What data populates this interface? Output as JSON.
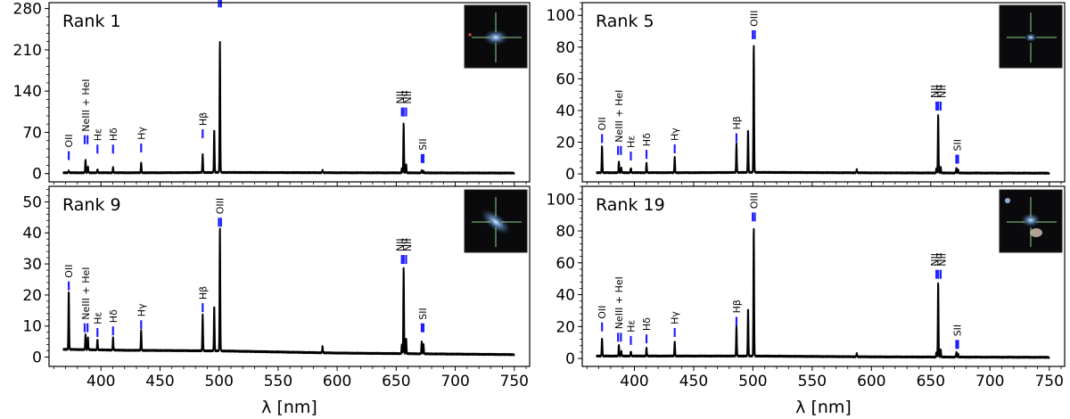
{
  "colors": {
    "spectrum": "#000000",
    "marker": "#1f1fff",
    "thumbnail_bg": "#0a0a0c",
    "thumbnail_cross": "#8fd18a"
  },
  "chart_data": [
    {
      "type": "line",
      "title": "Rank 1",
      "xlabel": "λ [nm]",
      "ylabel": "",
      "xlim": [
        356,
        763
      ],
      "ylim": [
        -14,
        290
      ],
      "xticks": [
        400,
        450,
        500,
        550,
        600,
        650,
        700,
        750
      ],
      "yticks": [
        0,
        70,
        140,
        210,
        280
      ],
      "continuum": [
        [
          370,
          1.5
        ],
        [
          450,
          1.5
        ],
        [
          500,
          2
        ],
        [
          600,
          1.5
        ],
        [
          750,
          1
        ]
      ],
      "emission_peaks": [
        {
          "line": "OII",
          "wavelength": 372.7,
          "value": 3
        },
        {
          "line": "NeIII",
          "wavelength": 386.9,
          "value": 22
        },
        {
          "line": "HeI",
          "wavelength": 388.9,
          "value": 10
        },
        {
          "line": "Hε",
          "wavelength": 397.0,
          "value": 6
        },
        {
          "line": "Hδ",
          "wavelength": 410.2,
          "value": 9
        },
        {
          "line": "Hγ",
          "wavelength": 434.0,
          "value": 17
        },
        {
          "line": "Hβ",
          "wavelength": 486.1,
          "value": 30
        },
        {
          "line": "OIII",
          "wavelength": 495.9,
          "value": 73
        },
        {
          "line": "OIII",
          "wavelength": 500.7,
          "value": 225
        },
        {
          "line": "HeI",
          "wavelength": 587.6,
          "value": 4
        },
        {
          "line": "NII",
          "wavelength": 654.8,
          "value": 8
        },
        {
          "line": "Hα",
          "wavelength": 656.3,
          "value": 85
        },
        {
          "line": "NII",
          "wavelength": 658.4,
          "value": 15
        },
        {
          "line": "SII",
          "wavelength": 671.6,
          "value": 4
        },
        {
          "line": "SII",
          "wavelength": 673.1,
          "value": 3
        }
      ],
      "line_markers": [
        {
          "label": "OII",
          "x": 372.7,
          "marker_y": 23,
          "ticks": [
            372.7
          ]
        },
        {
          "label": "NeIII + HeI",
          "x": 387,
          "marker_y": 50,
          "ticks": [
            386.2,
            388.6
          ]
        },
        {
          "label": "Hε",
          "x": 397.0,
          "marker_y": 34,
          "ticks": [
            397.0
          ]
        },
        {
          "label": "Hδ",
          "x": 410.2,
          "marker_y": 34,
          "ticks": [
            410.2
          ]
        },
        {
          "label": "Hγ",
          "x": 434.0,
          "marker_y": 36,
          "ticks": [
            434.0
          ]
        },
        {
          "label": "Hβ",
          "x": 486.1,
          "marker_y": 60,
          "ticks": [
            486.1
          ]
        },
        {
          "label": "OIII",
          "x": 500.7,
          "marker_y": 282,
          "ticks": [
            499.8,
            501.6
          ]
        },
        {
          "label": "NII",
          "x": 653.2,
          "marker_y": 97,
          "ticks": [
            654.8
          ]
        },
        {
          "label": "Hα",
          "x": 656.3,
          "marker_y": 97,
          "ticks": [
            656.3
          ]
        },
        {
          "label": "NII",
          "x": 659.6,
          "marker_y": 97,
          "ticks": [
            658.4
          ]
        },
        {
          "label": "SII",
          "x": 672.4,
          "marker_y": 18,
          "ticks": [
            671.6,
            673.1
          ]
        }
      ]
    },
    {
      "type": "line",
      "title": "Rank 5",
      "xlabel": "λ [nm]",
      "ylabel": "",
      "xlim": [
        356,
        763
      ],
      "ylim": [
        -5,
        108
      ],
      "xticks": [
        400,
        450,
        500,
        550,
        600,
        650,
        700,
        750
      ],
      "yticks": [
        0,
        20,
        40,
        60,
        80,
        100
      ],
      "continuum": [
        [
          370,
          0.8
        ],
        [
          450,
          0.8
        ],
        [
          500,
          1
        ],
        [
          600,
          0.7
        ],
        [
          750,
          0.5
        ]
      ],
      "emission_peaks": [
        {
          "line": "OII",
          "wavelength": 372.7,
          "value": 17
        },
        {
          "line": "NeIII",
          "wavelength": 386.9,
          "value": 7
        },
        {
          "line": "HeI",
          "wavelength": 388.9,
          "value": 3
        },
        {
          "line": "Hε",
          "wavelength": 397.0,
          "value": 3
        },
        {
          "line": "Hδ",
          "wavelength": 410.2,
          "value": 6
        },
        {
          "line": "Hγ",
          "wavelength": 434.0,
          "value": 10
        },
        {
          "line": "Hβ",
          "wavelength": 486.1,
          "value": 18
        },
        {
          "line": "OIII",
          "wavelength": 495.9,
          "value": 27
        },
        {
          "line": "OIII",
          "wavelength": 500.7,
          "value": 81
        },
        {
          "line": "HeI",
          "wavelength": 587.6,
          "value": 2
        },
        {
          "line": "NII",
          "wavelength": 654.8,
          "value": 3
        },
        {
          "line": "Hα",
          "wavelength": 656.3,
          "value": 37
        },
        {
          "line": "NII",
          "wavelength": 658.4,
          "value": 4
        },
        {
          "line": "SII",
          "wavelength": 671.6,
          "value": 3
        },
        {
          "line": "SII",
          "wavelength": 673.1,
          "value": 2
        }
      ],
      "line_markers": [
        {
          "label": "OII",
          "x": 372.7,
          "marker_y": 19.5,
          "ticks": [
            372.7
          ]
        },
        {
          "label": "NeIII + HeI",
          "x": 387,
          "marker_y": 12,
          "ticks": [
            386.2,
            388.6
          ]
        },
        {
          "label": "Hε",
          "x": 397.0,
          "marker_y": 8.5,
          "ticks": [
            397.0
          ]
        },
        {
          "label": "Hδ",
          "x": 410.2,
          "marker_y": 9.5,
          "ticks": [
            410.2
          ]
        },
        {
          "label": "Hγ",
          "x": 434.0,
          "marker_y": 13,
          "ticks": [
            434.0
          ]
        },
        {
          "label": "Hβ",
          "x": 486.1,
          "marker_y": 20,
          "ticks": [
            486.1
          ]
        },
        {
          "label": "OIII",
          "x": 500.7,
          "marker_y": 85,
          "ticks": [
            499.8,
            501.6
          ]
        },
        {
          "label": "NII",
          "x": 653.2,
          "marker_y": 40,
          "ticks": [
            654.8
          ]
        },
        {
          "label": "Hα",
          "x": 656.3,
          "marker_y": 40,
          "ticks": [
            656.3
          ]
        },
        {
          "label": "NII",
          "x": 659.6,
          "marker_y": 40,
          "ticks": [
            658.4
          ]
        },
        {
          "label": "SII",
          "x": 672.4,
          "marker_y": 6.5,
          "ticks": [
            671.6,
            673.1
          ]
        }
      ]
    },
    {
      "type": "line",
      "title": "Rank 9",
      "xlabel": "λ [nm]",
      "ylabel": "",
      "xlim": [
        356,
        763
      ],
      "ylim": [
        -3,
        55
      ],
      "xticks": [
        400,
        450,
        500,
        550,
        600,
        650,
        700,
        750
      ],
      "yticks": [
        0,
        10,
        20,
        30,
        40,
        50
      ],
      "continuum": [
        [
          370,
          2.5
        ],
        [
          420,
          2.2
        ],
        [
          500,
          2
        ],
        [
          600,
          1.3
        ],
        [
          750,
          0.8
        ]
      ],
      "emission_peaks": [
        {
          "line": "OII",
          "wavelength": 372.7,
          "value": 19
        },
        {
          "line": "NeIII",
          "wavelength": 386.9,
          "value": 5
        },
        {
          "line": "HeI",
          "wavelength": 388.9,
          "value": 4
        },
        {
          "line": "Hε",
          "wavelength": 397.0,
          "value": 3.5
        },
        {
          "line": "Hδ",
          "wavelength": 410.2,
          "value": 4
        },
        {
          "line": "Hγ",
          "wavelength": 434.0,
          "value": 6.5
        },
        {
          "line": "Hβ",
          "wavelength": 486.1,
          "value": 11.5
        },
        {
          "line": "OIII",
          "wavelength": 495.9,
          "value": 14.5
        },
        {
          "line": "OIII",
          "wavelength": 500.7,
          "value": 40
        },
        {
          "line": "HeI",
          "wavelength": 587.6,
          "value": 2
        },
        {
          "line": "NII",
          "wavelength": 654.8,
          "value": 3
        },
        {
          "line": "Hα",
          "wavelength": 656.3,
          "value": 28
        },
        {
          "line": "NII",
          "wavelength": 658.4,
          "value": 5
        },
        {
          "line": "SII",
          "wavelength": 671.6,
          "value": 4
        },
        {
          "line": "SII",
          "wavelength": 673.1,
          "value": 3
        }
      ],
      "line_markers": [
        {
          "label": "OII",
          "x": 372.7,
          "marker_y": 21.5,
          "ticks": [
            372.7
          ]
        },
        {
          "label": "NeIII + HeI",
          "x": 387,
          "marker_y": 8,
          "ticks": [
            386.2,
            388.6
          ]
        },
        {
          "label": "Hε",
          "x": 397.0,
          "marker_y": 6.5,
          "ticks": [
            397.0
          ]
        },
        {
          "label": "Hδ",
          "x": 410.2,
          "marker_y": 7,
          "ticks": [
            410.2
          ]
        },
        {
          "label": "Hγ",
          "x": 434.0,
          "marker_y": 9,
          "ticks": [
            434.0
          ]
        },
        {
          "label": "Hβ",
          "x": 486.1,
          "marker_y": 14.5,
          "ticks": [
            486.1
          ]
        },
        {
          "label": "OIII",
          "x": 500.7,
          "marker_y": 42,
          "ticks": [
            499.8,
            501.6
          ]
        },
        {
          "label": "NII",
          "x": 653.2,
          "marker_y": 30,
          "ticks": [
            654.8
          ]
        },
        {
          "label": "Hα",
          "x": 656.3,
          "marker_y": 30,
          "ticks": [
            656.3
          ]
        },
        {
          "label": "NII",
          "x": 659.6,
          "marker_y": 30,
          "ticks": [
            658.4
          ]
        },
        {
          "label": "SII",
          "x": 672.4,
          "marker_y": 8,
          "ticks": [
            671.6,
            673.1
          ]
        }
      ]
    },
    {
      "type": "line",
      "title": "Rank 19",
      "xlabel": "λ [nm]",
      "ylabel": "",
      "xlim": [
        356,
        763
      ],
      "ylim": [
        -5,
        108
      ],
      "xticks": [
        400,
        450,
        500,
        550,
        600,
        650,
        700,
        750
      ],
      "yticks": [
        0,
        20,
        40,
        60,
        80,
        100
      ],
      "continuum": [
        [
          370,
          1.5
        ],
        [
          450,
          1.5
        ],
        [
          500,
          1.5
        ],
        [
          600,
          1
        ],
        [
          750,
          0.7
        ]
      ],
      "emission_peaks": [
        {
          "line": "OII",
          "wavelength": 372.7,
          "value": 11
        },
        {
          "line": "NeIII",
          "wavelength": 386.9,
          "value": 7
        },
        {
          "line": "HeI",
          "wavelength": 388.9,
          "value": 3
        },
        {
          "line": "Hε",
          "wavelength": 397.0,
          "value": 3
        },
        {
          "line": "Hδ",
          "wavelength": 410.2,
          "value": 5
        },
        {
          "line": "Hγ",
          "wavelength": 434.0,
          "value": 9
        },
        {
          "line": "Hβ",
          "wavelength": 486.1,
          "value": 19
        },
        {
          "line": "OIII",
          "wavelength": 495.9,
          "value": 30
        },
        {
          "line": "OIII",
          "wavelength": 500.7,
          "value": 81
        },
        {
          "line": "HeI",
          "wavelength": 587.6,
          "value": 2
        },
        {
          "line": "NII",
          "wavelength": 654.8,
          "value": 3
        },
        {
          "line": "Hα",
          "wavelength": 656.3,
          "value": 47
        },
        {
          "line": "NII",
          "wavelength": 658.4,
          "value": 5
        },
        {
          "line": "SII",
          "wavelength": 671.6,
          "value": 3
        },
        {
          "line": "SII",
          "wavelength": 673.1,
          "value": 2
        }
      ],
      "line_markers": [
        {
          "label": "OII",
          "x": 372.7,
          "marker_y": 17,
          "ticks": [
            372.7
          ]
        },
        {
          "label": "NeIII + HeI",
          "x": 387,
          "marker_y": 10.5,
          "ticks": [
            386.2,
            388.6
          ]
        },
        {
          "label": "Hε",
          "x": 397.0,
          "marker_y": 8.5,
          "ticks": [
            397.0
          ]
        },
        {
          "label": "Hδ",
          "x": 410.2,
          "marker_y": 9.5,
          "ticks": [
            410.2
          ]
        },
        {
          "label": "Hγ",
          "x": 434.0,
          "marker_y": 13.5,
          "ticks": [
            434.0
          ]
        },
        {
          "label": "Hβ",
          "x": 486.1,
          "marker_y": 20.5,
          "ticks": [
            486.1
          ]
        },
        {
          "label": "OIII",
          "x": 500.7,
          "marker_y": 86,
          "ticks": [
            499.8,
            501.6
          ]
        },
        {
          "label": "NII",
          "x": 653.2,
          "marker_y": 50,
          "ticks": [
            654.8
          ]
        },
        {
          "label": "Hα",
          "x": 656.3,
          "marker_y": 50,
          "ticks": [
            656.3
          ]
        },
        {
          "label": "NII",
          "x": 659.6,
          "marker_y": 50,
          "ticks": [
            658.4
          ]
        },
        {
          "label": "SII",
          "x": 672.4,
          "marker_y": 6,
          "ticks": [
            671.6,
            673.1
          ]
        }
      ]
    }
  ]
}
